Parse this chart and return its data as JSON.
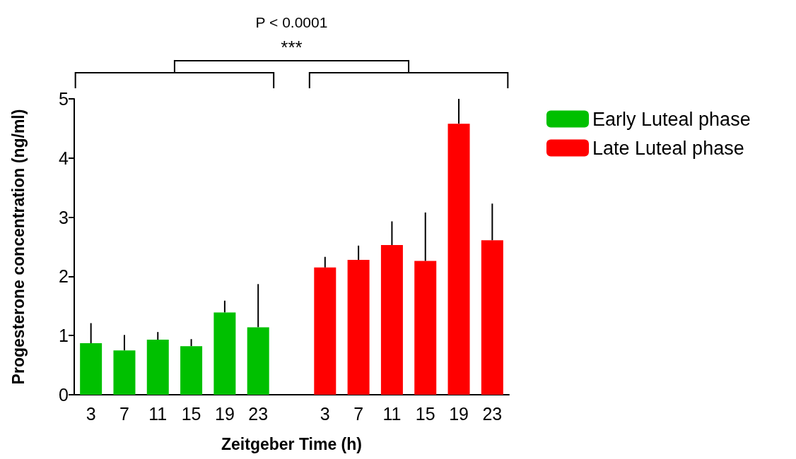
{
  "chart_data": {
    "type": "bar",
    "xlabel": "Zeitgeber Time (h)",
    "ylabel": "Progesterone concentration (ng/ml)",
    "categories": [
      "3",
      "7",
      "11",
      "15",
      "19",
      "23",
      null,
      "3",
      "7",
      "11",
      "15",
      "19",
      "23"
    ],
    "series": [
      {
        "name": "Early Luteal phase",
        "color": "#00c000",
        "values": [
          0.87,
          0.75,
          0.93,
          0.82,
          1.39,
          1.14,
          null,
          null,
          null,
          null,
          null,
          null,
          null
        ],
        "errors": [
          [
            0.87,
            1.21
          ],
          [
            0.75,
            1.01
          ],
          [
            0.93,
            1.06
          ],
          [
            0.82,
            0.94
          ],
          [
            1.39,
            1.59
          ],
          [
            1.14,
            1.87
          ],
          null,
          null,
          null,
          null,
          null,
          null,
          null
        ]
      },
      {
        "name": "Late Luteal phase",
        "color": "#ff0000",
        "values": [
          null,
          null,
          null,
          null,
          null,
          null,
          null,
          2.15,
          2.28,
          2.53,
          2.26,
          4.58,
          2.61
        ],
        "errors": [
          null,
          null,
          null,
          null,
          null,
          null,
          null,
          [
            2.15,
            2.33
          ],
          [
            2.28,
            2.52
          ],
          [
            2.53,
            2.93
          ],
          [
            2.26,
            3.08
          ],
          [
            4.58,
            5.0
          ],
          [
            2.61,
            3.23
          ]
        ]
      }
    ],
    "ylim": [
      0,
      5
    ],
    "yticks": [
      0,
      1,
      2,
      3,
      4,
      5
    ],
    "grid": false,
    "legend": "right",
    "annotations": [
      "P < 0.0001",
      "***"
    ]
  }
}
